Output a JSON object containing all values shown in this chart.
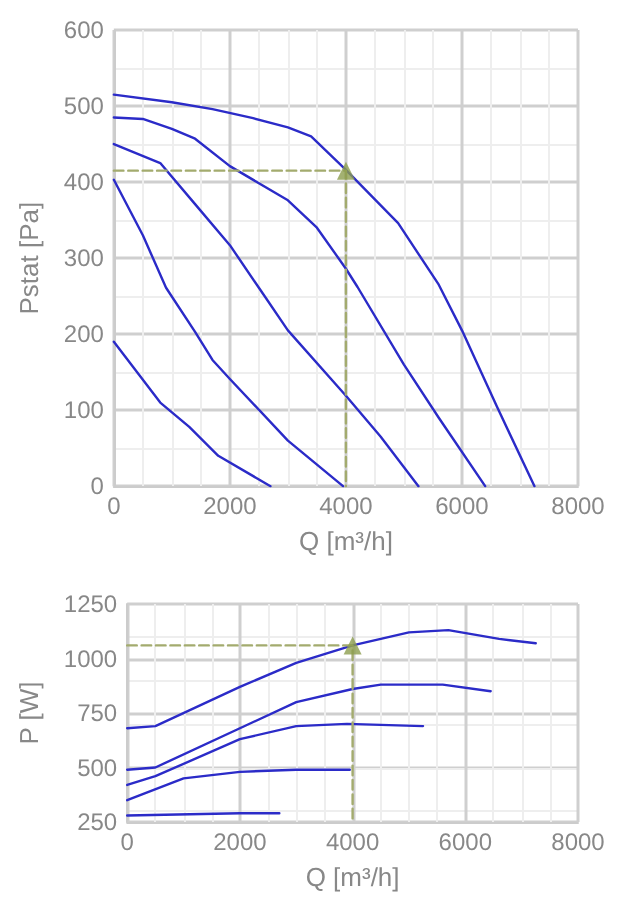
{
  "chart_data": [
    {
      "type": "line",
      "xlabel": "Q [m³/h]",
      "ylabel": "Pstat [Pa]",
      "xlim": [
        0,
        8000
      ],
      "xticks": [
        0,
        2000,
        4000,
        6000,
        8000
      ],
      "ylim": [
        0,
        600
      ],
      "yticks": [
        0,
        100,
        200,
        300,
        400,
        500,
        600
      ],
      "grid": true,
      "marker": "none",
      "line_style": "solid",
      "series": [
        {
          "color": "#2b2bc8",
          "x": [
            0,
            1000,
            1700,
            2400,
            3000,
            3400,
            4000,
            4900,
            5600,
            6000,
            6600,
            7250
          ],
          "values": [
            515,
            505,
            496,
            484,
            472,
            460,
            416,
            346,
            265,
            205,
            105,
            0
          ]
        },
        {
          "color": "#2b2bc8",
          "x": [
            0,
            500,
            1000,
            1400,
            2000,
            3000,
            3500,
            4000,
            4200,
            5000,
            5600,
            6400
          ],
          "values": [
            485,
            483,
            470,
            457,
            421,
            376,
            340,
            286,
            262,
            160,
            90,
            0
          ]
        },
        {
          "color": "#2b2bc8",
          "x": [
            0,
            800,
            1400,
            2000,
            2500,
            3000,
            4000,
            4600,
            5250
          ],
          "values": [
            450,
            425,
            371,
            317,
            261,
            205,
            119,
            65,
            0
          ]
        },
        {
          "color": "#2b2bc8",
          "x": [
            0,
            500,
            900,
            1400,
            1700,
            2000,
            3000,
            3950
          ],
          "values": [
            403,
            330,
            261,
            203,
            166,
            141,
            60,
            0
          ]
        },
        {
          "color": "#2b2bc8",
          "x": [
            0,
            800,
            1300,
            1800,
            2700
          ],
          "values": [
            190,
            110,
            78,
            40,
            0
          ]
        },
        {
          "color": "#a3ab6e",
          "line_style": "dashed",
          "x": [
            0,
            4000,
            4000
          ],
          "values": [
            415,
            415,
            0
          ]
        },
        {
          "type": "scatter",
          "marker": "triangle",
          "color": "#8c9e4e",
          "x": [
            4000
          ],
          "values": [
            415
          ]
        }
      ]
    },
    {
      "type": "line",
      "xlabel": "Q [m³/h]",
      "ylabel": "P [W]",
      "xlim": [
        0,
        8000
      ],
      "xticks": [
        0,
        2000,
        4000,
        6000,
        8000
      ],
      "ylim": [
        250,
        1250
      ],
      "yticks": [
        250,
        500,
        750,
        1000,
        1250
      ],
      "grid": true,
      "marker": "none",
      "line_style": "solid",
      "series": [
        {
          "color": "#2b2bc8",
          "x": [
            0,
            500,
            2000,
            3000,
            4000,
            5000,
            5700,
            6600,
            7250
          ],
          "values": [
            680,
            690,
            870,
            980,
            1060,
            1120,
            1130,
            1090,
            1070
          ]
        },
        {
          "color": "#2b2bc8",
          "x": [
            0,
            500,
            2000,
            3000,
            4000,
            4500,
            5600,
            6450
          ],
          "values": [
            490,
            500,
            680,
            800,
            860,
            880,
            880,
            850
          ]
        },
        {
          "color": "#2b2bc8",
          "x": [
            0,
            500,
            2000,
            3000,
            3900,
            5250
          ],
          "values": [
            420,
            460,
            630,
            690,
            700,
            690
          ]
        },
        {
          "color": "#2b2bc8",
          "x": [
            0,
            1000,
            2000,
            3000,
            3950
          ],
          "values": [
            350,
            450,
            480,
            490,
            490
          ]
        },
        {
          "color": "#2b2bc8",
          "x": [
            0,
            2000,
            2700
          ],
          "values": [
            280,
            290,
            290
          ]
        },
        {
          "color": "#a3ab6e",
          "line_style": "dashed",
          "x": [
            0,
            4000,
            4000
          ],
          "values": [
            1060,
            1060,
            250
          ]
        },
        {
          "type": "scatter",
          "marker": "triangle",
          "color": "#8c9e4e",
          "x": [
            4000
          ],
          "values": [
            1060
          ]
        }
      ]
    }
  ]
}
